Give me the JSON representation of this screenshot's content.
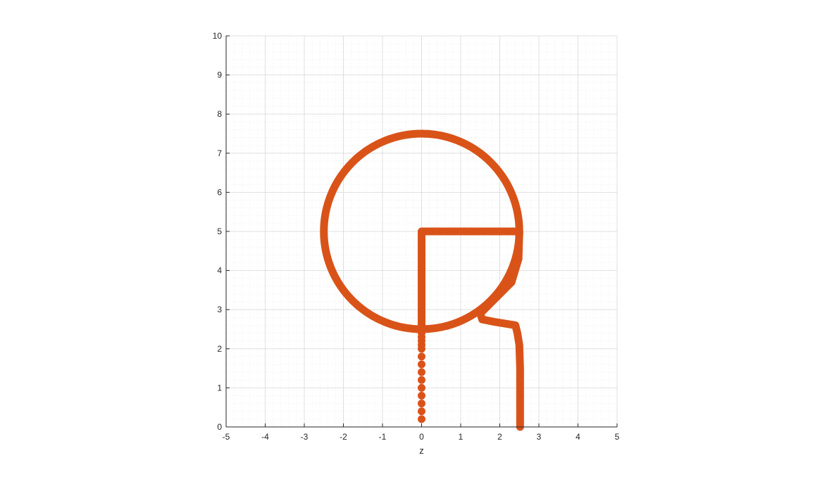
{
  "chart_data": {
    "type": "line",
    "title": "",
    "xlabel": "z",
    "ylabel": "",
    "xlim": [
      -5,
      5
    ],
    "ylim": [
      0,
      10
    ],
    "xticks": [
      -5,
      -4,
      -3,
      -2,
      -1,
      0,
      1,
      2,
      3,
      4,
      5
    ],
    "yticks": [
      0,
      1,
      2,
      3,
      4,
      5,
      6,
      7,
      8,
      9,
      10
    ],
    "grid": true,
    "minor_grid": true,
    "colors": {
      "series": "#D95319",
      "grid": "#d9d9d9",
      "axis": "#262626"
    },
    "series": [
      {
        "kind": "circle",
        "center": [
          0,
          5
        ],
        "radius": 2.5
      },
      {
        "kind": "polyline",
        "x": [
          0,
          0,
          2.5
        ],
        "y": [
          2.5,
          5,
          5
        ]
      },
      {
        "kind": "polyline",
        "x": [
          2.5,
          2.48,
          2.3,
          1.9,
          1.5,
          1.55,
          1.9,
          2.4,
          2.45,
          2.5,
          2.52,
          2.52
        ],
        "y": [
          5.0,
          4.3,
          3.7,
          3.3,
          2.9,
          2.75,
          2.68,
          2.6,
          2.4,
          2.1,
          1.5,
          0
        ]
      },
      {
        "kind": "markers",
        "x": [
          0,
          0,
          0,
          0,
          0,
          0,
          0,
          0,
          0,
          0,
          0,
          0,
          0,
          0
        ],
        "y": [
          0.2,
          0.4,
          0.6,
          0.8,
          1.0,
          1.2,
          1.4,
          1.6,
          1.8,
          2.0,
          2.1,
          2.2,
          2.3,
          2.4
        ]
      }
    ]
  }
}
